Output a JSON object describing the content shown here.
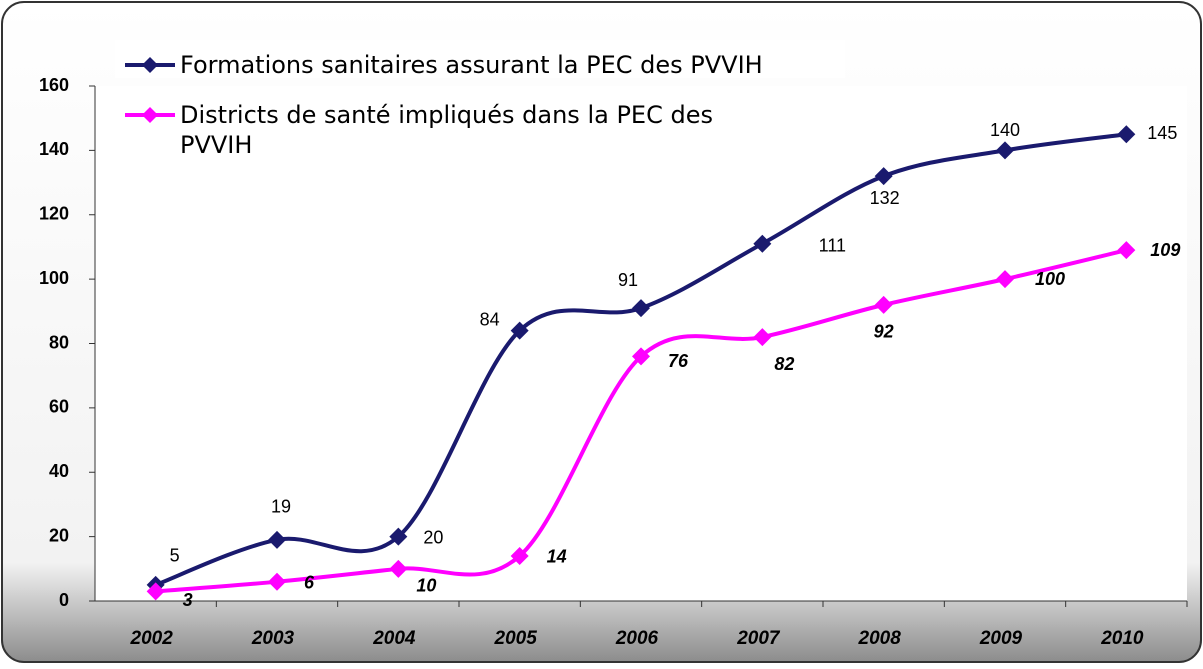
{
  "chart_data": {
    "type": "line",
    "categories": [
      "2002",
      "2003",
      "2004",
      "2005",
      "2006",
      "2007",
      "2008",
      "2009",
      "2010"
    ],
    "series": [
      {
        "name": "Formations sanitaires assurant la PEC des PVVIH",
        "color": "#1a1a6e",
        "values": [
          5,
          19,
          20,
          84,
          91,
          111,
          132,
          140,
          145
        ]
      },
      {
        "name": "Districts de santé impliqués dans la PEC des PVVIH",
        "color": "#ff00ff",
        "values": [
          3,
          6,
          10,
          14,
          76,
          82,
          92,
          100,
          109
        ]
      }
    ],
    "ylim": [
      0,
      160
    ],
    "yticks": [
      0,
      20,
      40,
      60,
      80,
      100,
      120,
      140,
      160
    ],
    "grid": false,
    "smooth": true
  }
}
